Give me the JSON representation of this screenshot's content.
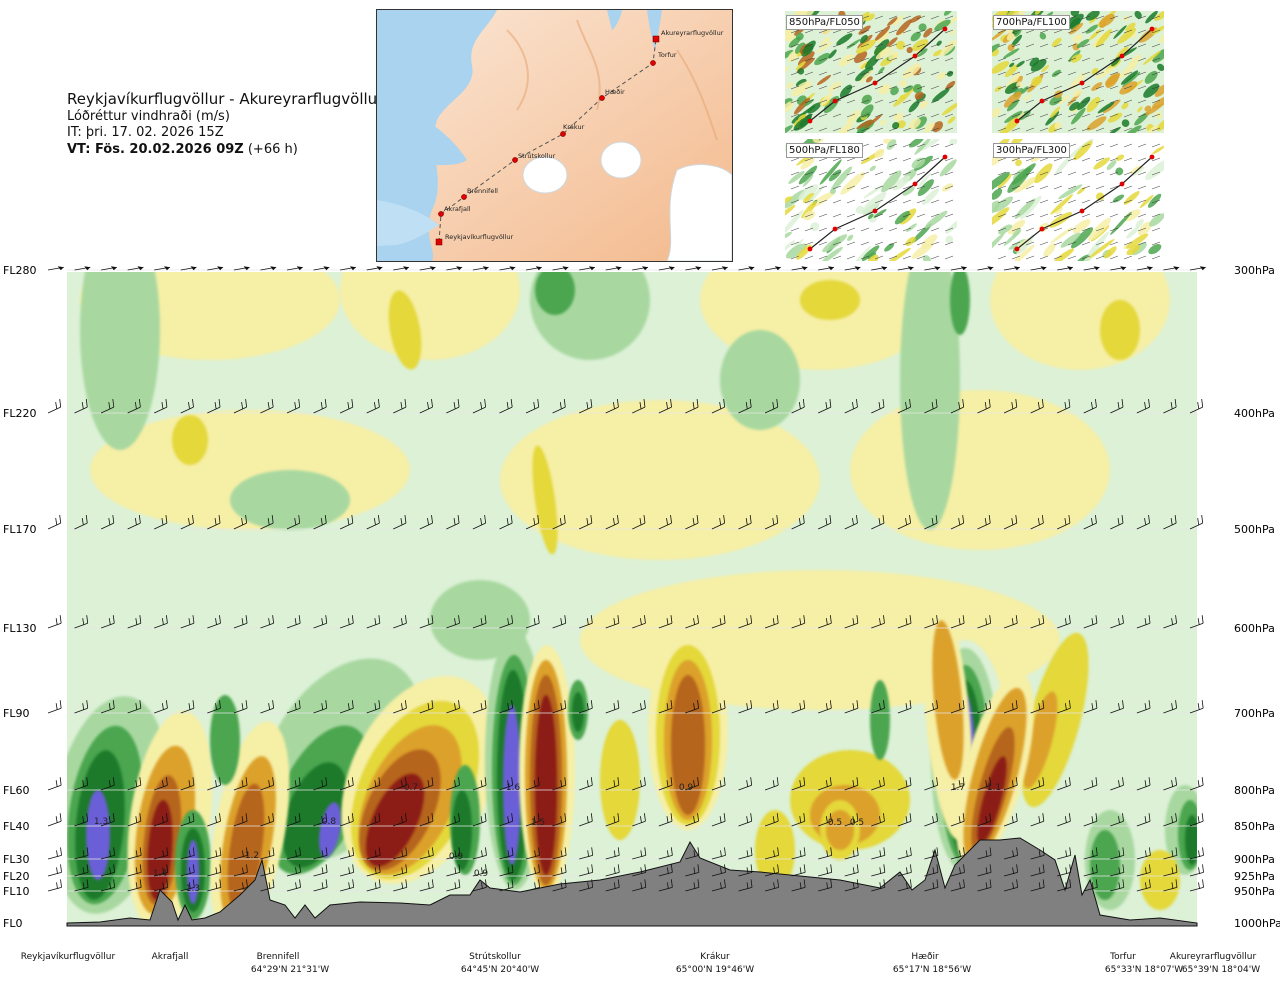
{
  "header": {
    "route": "Reykjavíkurflugvöllur - Akureyrarflugvöllur",
    "subtitle": "Lóðréttur vindhraði (m/s)",
    "issue_time": "IT: þri. 17. 02. 2026 15Z",
    "valid_prefix": "VT: Fös. 20.02.2026 09Z",
    "valid_suffix": "(+66 h)"
  },
  "map": {
    "waypoints": [
      "Akureyrarflugvöllur",
      "Torfur",
      "Hæðir",
      "Krákur",
      "Strútskollur",
      "Brennifell",
      "Akrafjall",
      "Reykjavíkurflugvöllur"
    ]
  },
  "mini_maps": [
    {
      "label": "850hPa/FL050"
    },
    {
      "label": "700hPa/FL100"
    },
    {
      "label": "500hPa/FL180"
    },
    {
      "label": "300hPa/FL300"
    }
  ],
  "chart_data": {
    "type": "heatmap",
    "title": "Lóðréttur vindhraði (m/s)",
    "left_axis": [
      "FL280",
      "FL220",
      "FL170",
      "FL130",
      "FL90",
      "FL60",
      "FL40",
      "FL30",
      "FL20",
      "FL10",
      "FL0"
    ],
    "right_axis": [
      "300hPa",
      "400hPa",
      "500hPa",
      "600hPa",
      "700hPa",
      "800hPa",
      "850hPa",
      "900hPa",
      "925hPa",
      "950hPa",
      "1000hPa"
    ],
    "locations": [
      {
        "name": "Reykjavíkurflugvöllur",
        "coord": ""
      },
      {
        "name": "Akrafjall",
        "coord": ""
      },
      {
        "name": "Brennifell",
        "coord": "64°29'N 21°31'W"
      },
      {
        "name": "Strútskollur",
        "coord": "64°45'N 20°40'W"
      },
      {
        "name": "Krákur",
        "coord": "65°00'N 19°46'W"
      },
      {
        "name": "Hæðir",
        "coord": "65°17'N 18°56'W"
      },
      {
        "name": "Torfur",
        "coord": "65°33'N 18°07'W"
      },
      {
        "name": "Akureyrarflugvöllur",
        "coord": "65°39'N 18°04'W"
      }
    ],
    "extrema_labels": [
      "1.3",
      "1.4",
      "1.3",
      "1.2",
      "0.8",
      "0.7",
      "0.9",
      "0.9",
      "1.6",
      "1.5",
      "0.9",
      "0.5",
      "0.5",
      "1.7",
      "1.1"
    ],
    "colors": {
      "blue_core": "#6a5fd6",
      "dark_green": "#1a7a2a",
      "mid_green": "#4ca64f",
      "light_green": "#a8d8a0",
      "pale_green": "#dcf1d6",
      "pale_yellow": "#f6efa6",
      "yellow": "#e4d83a",
      "orange": "#dca12a",
      "brown": "#b5651d",
      "dark_red": "#8c1d14",
      "terrain": "#808080"
    }
  }
}
